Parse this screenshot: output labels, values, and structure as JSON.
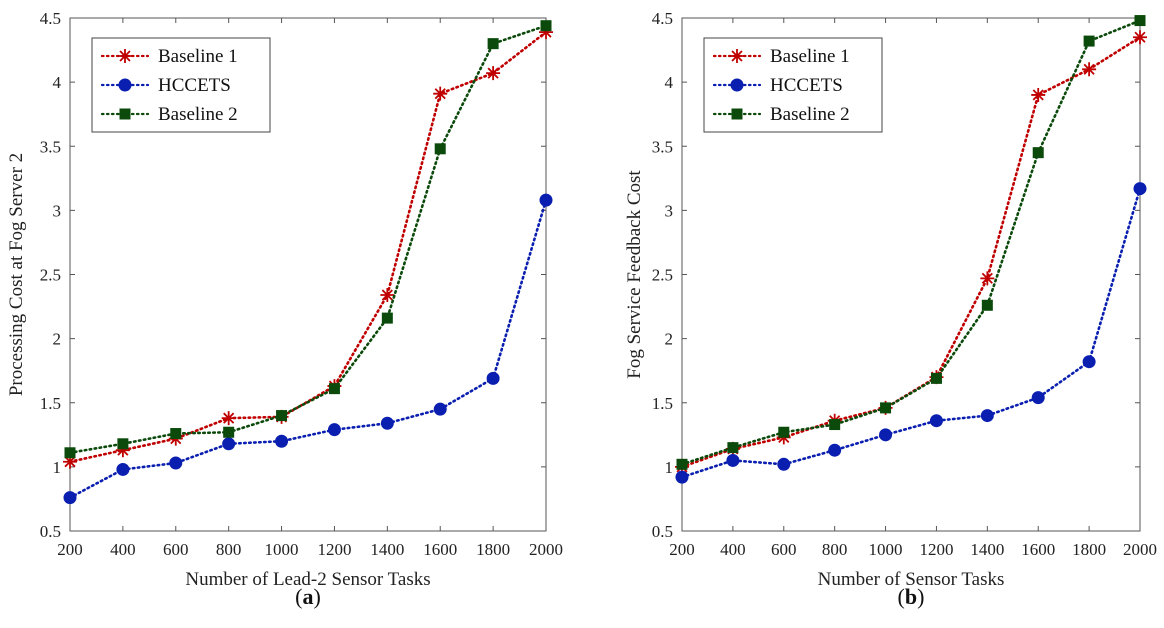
{
  "chart_data": [
    {
      "type": "line",
      "caption": "(a)",
      "caption_letter": "a",
      "xlabel": "Number of Lead-2 Sensor Tasks",
      "ylabel": "Processing Cost at Fog Server 2",
      "x": [
        200,
        400,
        600,
        800,
        1000,
        1200,
        1400,
        1600,
        1800,
        2000
      ],
      "xticks": [
        200,
        400,
        600,
        800,
        1000,
        1200,
        1400,
        1600,
        1800,
        2000
      ],
      "yticks": [
        0.5,
        1,
        1.5,
        2,
        2.5,
        3,
        3.5,
        4,
        4.5
      ],
      "xlim": [
        200,
        2000
      ],
      "ylim": [
        0.5,
        4.5
      ],
      "grid": false,
      "legend": "top-left",
      "series": [
        {
          "name": "Baseline 1",
          "color": "#c00000",
          "marker": "asterisk",
          "values": [
            1.04,
            1.13,
            1.22,
            1.38,
            1.39,
            1.63,
            2.34,
            3.91,
            4.07,
            4.39
          ]
        },
        {
          "name": "HCCETS",
          "color": "#0a1fb0",
          "marker": "circle",
          "values": [
            0.76,
            0.98,
            1.03,
            1.18,
            1.2,
            1.29,
            1.34,
            1.45,
            1.69,
            3.08
          ]
        },
        {
          "name": "Baseline 2",
          "color": "#0b4a0b",
          "marker": "square",
          "values": [
            1.11,
            1.18,
            1.26,
            1.27,
            1.4,
            1.61,
            2.16,
            3.48,
            4.3,
            4.44
          ]
        }
      ]
    },
    {
      "type": "line",
      "caption": "(b)",
      "caption_letter": "b",
      "xlabel": "Number of Sensor Tasks",
      "ylabel": "Fog Service Feedback Cost",
      "x": [
        200,
        400,
        600,
        800,
        1000,
        1200,
        1400,
        1600,
        1800,
        2000
      ],
      "xticks": [
        200,
        400,
        600,
        800,
        1000,
        1200,
        1400,
        1600,
        1800,
        2000
      ],
      "yticks": [
        0.5,
        1,
        1.5,
        2,
        2.5,
        3,
        3.5,
        4,
        4.5
      ],
      "xlim": [
        200,
        2000
      ],
      "ylim": [
        0.5,
        4.5
      ],
      "grid": false,
      "legend": "top-left",
      "series": [
        {
          "name": "Baseline 1",
          "color": "#c00000",
          "marker": "asterisk",
          "values": [
            1.0,
            1.14,
            1.23,
            1.36,
            1.46,
            1.7,
            2.47,
            3.9,
            4.1,
            4.35
          ]
        },
        {
          "name": "HCCETS",
          "color": "#0a1fb0",
          "marker": "circle",
          "values": [
            0.92,
            1.05,
            1.02,
            1.13,
            1.25,
            1.36,
            1.4,
            1.54,
            1.82,
            3.17
          ]
        },
        {
          "name": "Baseline 2",
          "color": "#0b4a0b",
          "marker": "square",
          "values": [
            1.02,
            1.15,
            1.27,
            1.33,
            1.46,
            1.69,
            2.26,
            3.45,
            4.32,
            4.48
          ]
        }
      ]
    }
  ]
}
